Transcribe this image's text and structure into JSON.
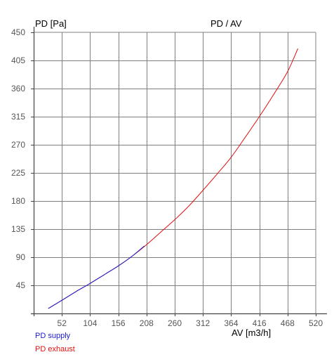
{
  "chart_data": {
    "type": "line",
    "title": "PD / AV",
    "ylabel": "PD [Pa]",
    "xlabel": "AV [m3/h]",
    "xlim": [
      0,
      520
    ],
    "ylim": [
      0,
      450
    ],
    "x_ticks": [
      "52",
      "104",
      "156",
      "208",
      "260",
      "312",
      "364",
      "416",
      "468",
      "520"
    ],
    "y_ticks": [
      "450",
      "405",
      "360",
      "315",
      "270",
      "225",
      "180",
      "135",
      "90",
      "45"
    ],
    "grid": true,
    "legend_position": "bottom-left",
    "colors": {
      "supply": "#1a1ad0",
      "exhaust": "#e01010",
      "grid": "#808080",
      "axis": "#444444",
      "tick_text": "#555555"
    },
    "series": [
      {
        "name": "PD supply",
        "color": "#1a1ad0",
        "x": [
          27,
          52,
          78,
          104,
          130,
          156,
          182,
          204
        ],
        "y": [
          8,
          21,
          35,
          48,
          62,
          76,
          92,
          108
        ]
      },
      {
        "name": "PD exhaust",
        "color": "#e01010",
        "x": [
          27,
          52,
          78,
          104,
          130,
          156,
          182,
          208,
          234,
          260,
          286,
          312,
          338,
          364,
          390,
          416,
          442,
          468,
          487
        ],
        "y": [
          8,
          21,
          35,
          48,
          62,
          76,
          92,
          110,
          130,
          150,
          172,
          197,
          223,
          250,
          282,
          315,
          350,
          387,
          424
        ]
      }
    ]
  }
}
